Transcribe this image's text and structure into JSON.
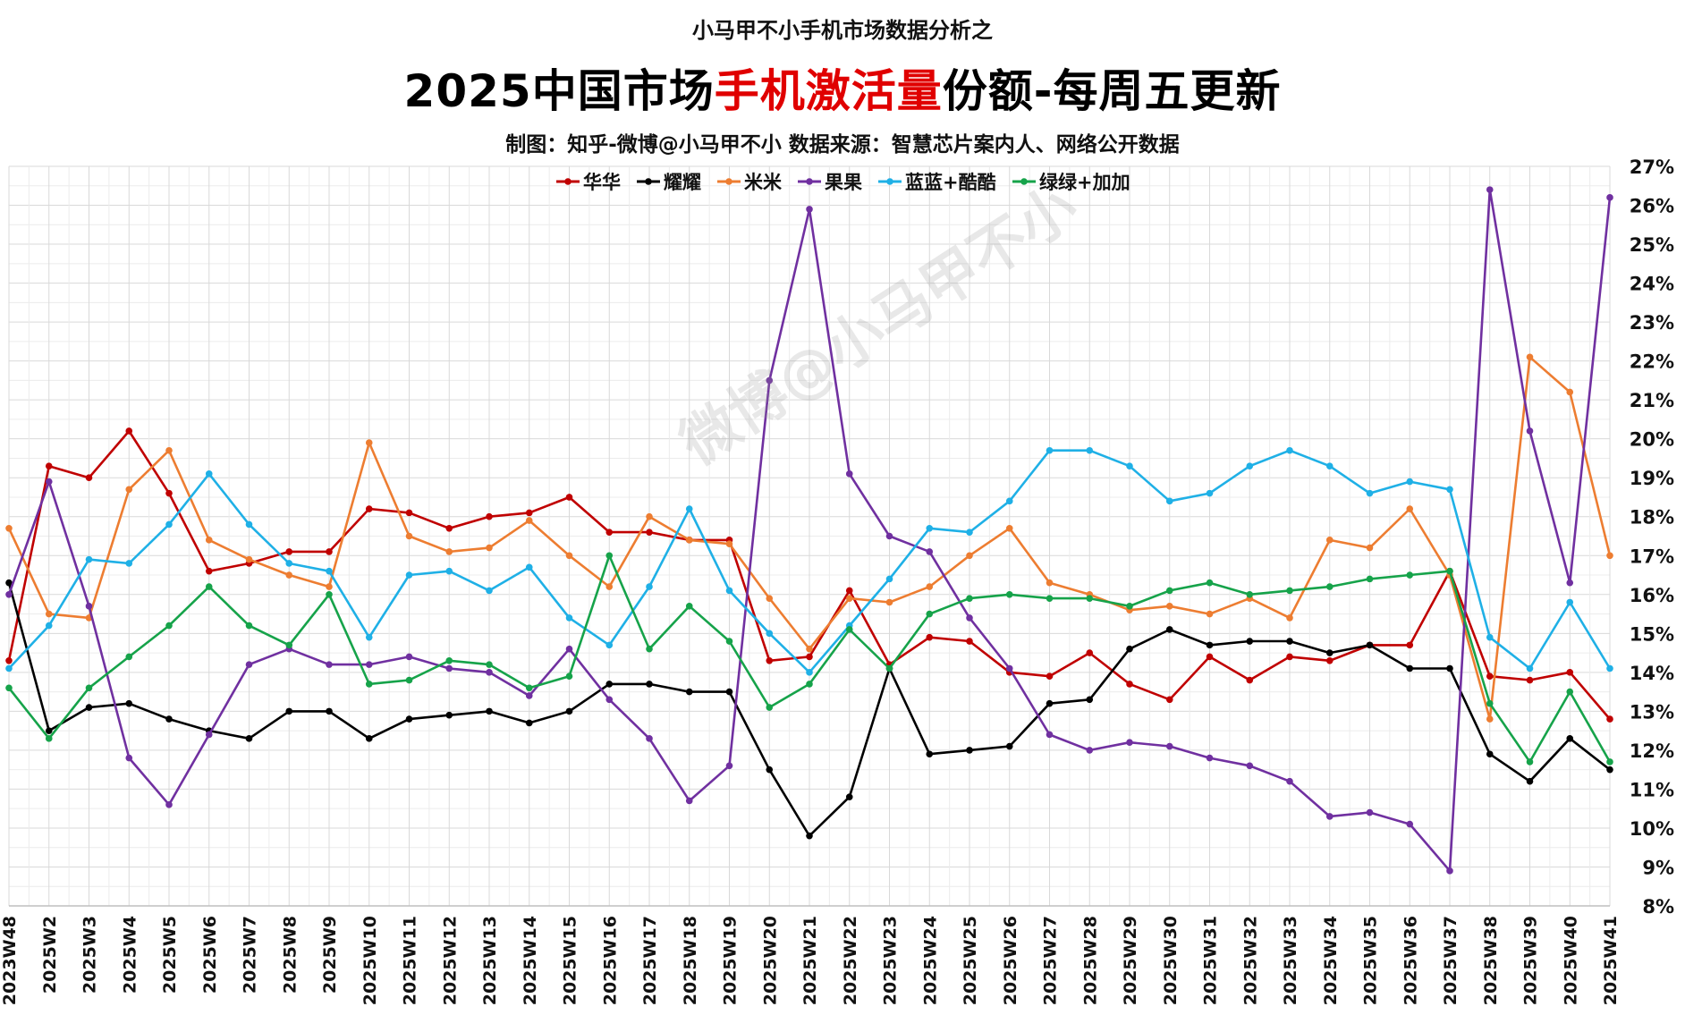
{
  "header": {
    "pretitle": "小马甲不小手机市场数据分析之",
    "title_pre": "2025中国市场",
    "title_highlight": "手机激活量",
    "title_post": "份额-每周五更新",
    "subtitle": "制图：知乎-微博@小马甲不小   数据来源：智慧芯片案内人、网络公开数据"
  },
  "watermark": "微博@小马甲不小",
  "chart_data": {
    "type": "line",
    "x": [
      "2023W48",
      "2025W2",
      "2025W3",
      "2025W4",
      "2025W5",
      "2025W6",
      "2025W7",
      "2025W8",
      "2025W9",
      "2025W10",
      "2025W11",
      "2025W12",
      "2025W13",
      "2025W14",
      "2025W15",
      "2025W16",
      "2025W17",
      "2025W18",
      "2025W19",
      "2025W20",
      "2025W21",
      "2025W22",
      "2025W23",
      "2025W24",
      "2025W25",
      "2025W26",
      "2025W27",
      "2025W28",
      "2025W29",
      "2025W30",
      "2025W31",
      "2025W32",
      "2025W33",
      "2025W34",
      "2025W35",
      "2025W36",
      "2025W37",
      "2025W38",
      "2025W39",
      "2025W40",
      "2025W41"
    ],
    "ylim": [
      8,
      27
    ],
    "yticks": [
      "8%",
      "9%",
      "10%",
      "11%",
      "12%",
      "13%",
      "14%",
      "15%",
      "16%",
      "17%",
      "18%",
      "19%",
      "20%",
      "21%",
      "22%",
      "23%",
      "24%",
      "25%",
      "26%",
      "27%"
    ],
    "grid": true,
    "legend_position": "top",
    "series": [
      {
        "name": "华华",
        "color": "#c00000",
        "values": [
          14.3,
          19.3,
          19.0,
          20.2,
          18.6,
          16.6,
          16.8,
          17.1,
          17.1,
          18.2,
          18.1,
          17.7,
          18.0,
          18.1,
          18.5,
          17.6,
          17.6,
          17.4,
          17.4,
          14.3,
          14.4,
          16.1,
          14.2,
          14.9,
          14.8,
          14.0,
          13.9,
          14.5,
          13.7,
          13.3,
          14.4,
          13.8,
          14.4,
          14.3,
          14.7,
          14.7,
          16.6,
          13.9,
          13.8,
          14.0,
          12.8
        ]
      },
      {
        "name": "耀耀",
        "color": "#000000",
        "values": [
          16.3,
          12.5,
          13.1,
          13.2,
          12.8,
          12.5,
          12.3,
          13.0,
          13.0,
          12.3,
          12.8,
          12.9,
          13.0,
          12.7,
          13.0,
          13.7,
          13.7,
          13.5,
          13.5,
          11.5,
          9.8,
          10.8,
          14.1,
          11.9,
          12.0,
          12.1,
          13.2,
          13.3,
          14.6,
          15.1,
          14.7,
          14.8,
          14.8,
          14.5,
          14.7,
          14.1,
          14.1,
          11.9,
          11.2,
          12.3,
          11.5
        ]
      },
      {
        "name": "米米",
        "color": "#ed7d31",
        "values": [
          17.7,
          15.5,
          15.4,
          18.7,
          19.7,
          17.4,
          16.9,
          16.5,
          16.2,
          19.9,
          17.5,
          17.1,
          17.2,
          17.9,
          17.0,
          16.2,
          18.0,
          17.4,
          17.3,
          15.9,
          14.6,
          15.9,
          15.8,
          16.2,
          17.0,
          17.7,
          16.3,
          16.0,
          15.6,
          15.7,
          15.5,
          15.9,
          15.4,
          17.4,
          17.2,
          18.2,
          16.5,
          12.8,
          22.1,
          21.2,
          17.0
        ]
      },
      {
        "name": "果果",
        "color": "#7030a0",
        "values": [
          16.0,
          18.9,
          15.7,
          11.8,
          10.6,
          12.4,
          14.2,
          14.6,
          14.2,
          14.2,
          14.4,
          14.1,
          14.0,
          13.4,
          14.6,
          13.3,
          12.3,
          10.7,
          11.6,
          21.5,
          25.9,
          19.1,
          17.5,
          17.1,
          15.4,
          14.1,
          12.4,
          12.0,
          12.2,
          12.1,
          11.8,
          11.6,
          11.2,
          10.3,
          10.4,
          10.1,
          8.9,
          26.4,
          20.2,
          16.3,
          26.2
        ]
      },
      {
        "name": "蓝蓝+酷酷",
        "color": "#1fb0e6",
        "values": [
          14.1,
          15.2,
          16.9,
          16.8,
          17.8,
          19.1,
          17.8,
          16.8,
          16.6,
          14.9,
          16.5,
          16.6,
          16.1,
          16.7,
          15.4,
          14.7,
          16.2,
          18.2,
          16.1,
          15.0,
          14.0,
          15.2,
          16.4,
          17.7,
          17.6,
          18.4,
          19.7,
          19.7,
          19.3,
          18.4,
          18.6,
          19.3,
          19.7,
          19.3,
          18.6,
          18.9,
          18.7,
          14.9,
          14.1,
          15.8,
          14.1
        ]
      },
      {
        "name": "绿绿+加加",
        "color": "#16a34a",
        "values": [
          13.6,
          12.3,
          13.6,
          14.4,
          15.2,
          16.2,
          15.2,
          14.7,
          16.0,
          13.7,
          13.8,
          14.3,
          14.2,
          13.6,
          13.9,
          17.0,
          14.6,
          15.7,
          14.8,
          13.1,
          13.7,
          15.1,
          14.1,
          15.5,
          15.9,
          16.0,
          15.9,
          15.9,
          15.7,
          16.1,
          16.3,
          16.0,
          16.1,
          16.2,
          16.4,
          16.5,
          16.6,
          13.2,
          11.7,
          13.5,
          11.7
        ]
      }
    ]
  }
}
